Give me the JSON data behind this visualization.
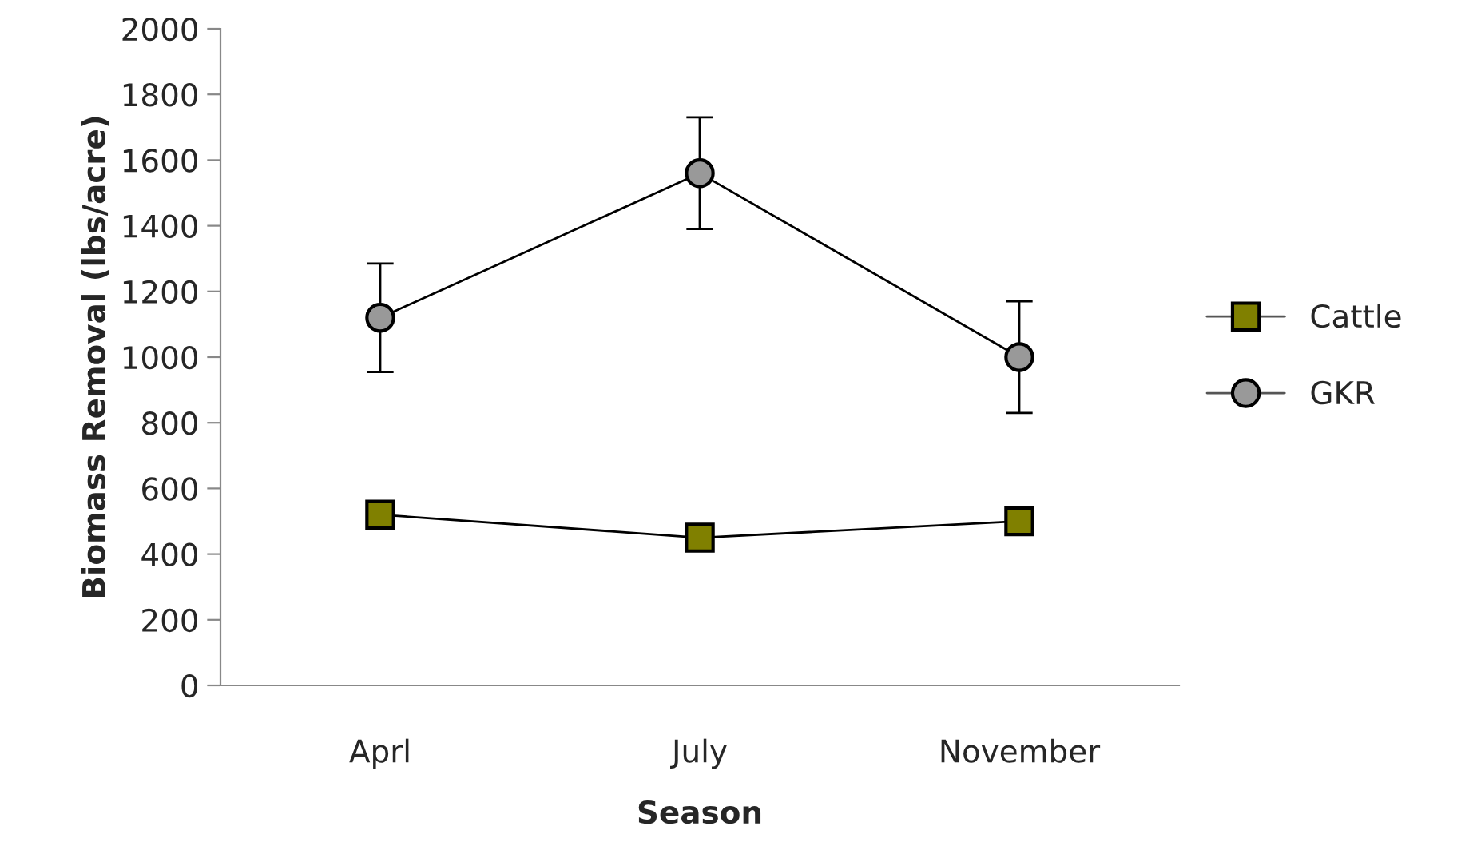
{
  "chart_data": {
    "type": "line",
    "xlabel": "Season",
    "ylabel": "Biomass Removal (lbs/acre)",
    "categories": [
      "Aprl",
      "July",
      "November"
    ],
    "series": [
      {
        "name": "Cattle",
        "color": "#808000",
        "values": [
          520,
          450,
          500
        ],
        "marker": "square"
      },
      {
        "name": "GKR",
        "color": "#999999",
        "values": [
          1120,
          1560,
          1000
        ],
        "marker": "circle",
        "errors": [
          165,
          170,
          170
        ]
      }
    ],
    "ylim": [
      0,
      2000
    ],
    "yticks": [
      0,
      200,
      400,
      600,
      800,
      1000,
      1200,
      1400,
      1600,
      1800,
      2000
    ],
    "grid": false,
    "legend": "right",
    "line_style": "solid"
  }
}
